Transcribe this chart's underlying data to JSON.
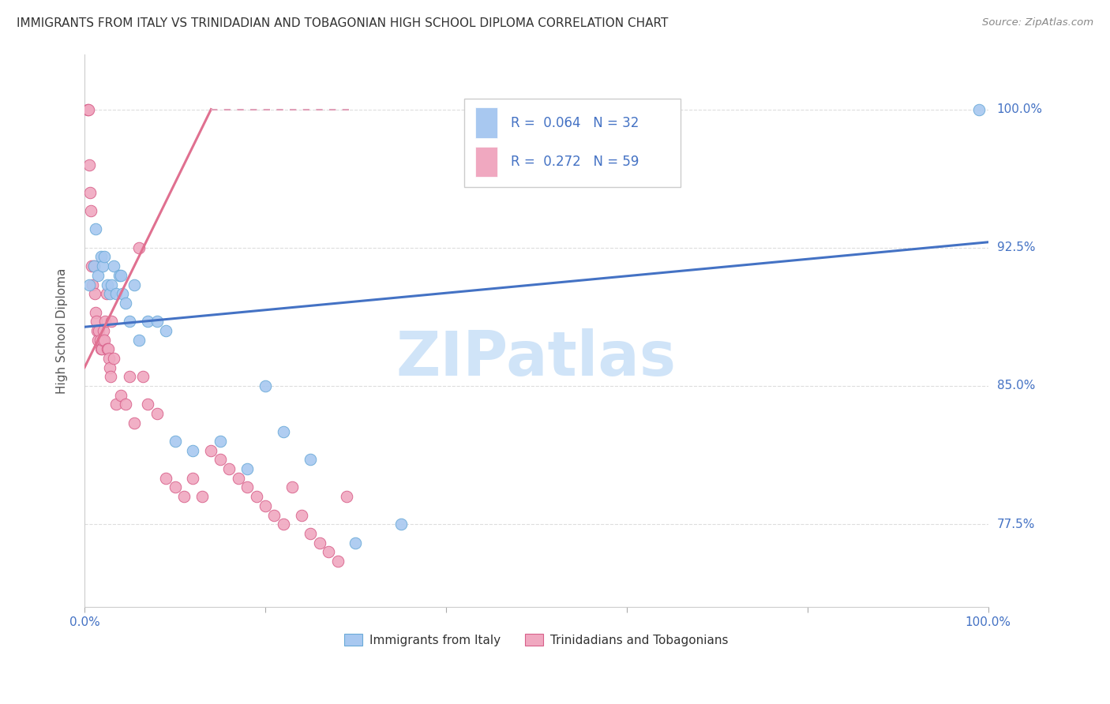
{
  "title": "IMMIGRANTS FROM ITALY VS TRINIDADIAN AND TOBAGONIAN HIGH SCHOOL DIPLOMA CORRELATION CHART",
  "source": "Source: ZipAtlas.com",
  "ylabel": "High School Diploma",
  "legend_italy_R": "0.064",
  "legend_italy_N": "32",
  "legend_trint_R": "0.272",
  "legend_trint_N": "59",
  "legend_label_italy": "Immigrants from Italy",
  "legend_label_trint": "Trinidadians and Tobagonians",
  "italy_color": "#a8c8f0",
  "italy_edge_color": "#6aaad8",
  "trint_color": "#f0a8c0",
  "trint_edge_color": "#d8608a",
  "italy_line_color": "#4472c4",
  "trint_line_color": "#e07090",
  "trint_dashed_color": "#e0a0b8",
  "r_n_color": "#4472c4",
  "watermark_color": "#d0e4f8",
  "axis_label_color": "#4472c4",
  "title_color": "#333333",
  "source_color": "#888888",
  "xlim": [
    0,
    100
  ],
  "ylim": [
    73,
    103
  ],
  "yticks": [
    77.5,
    85.0,
    92.5,
    100.0
  ],
  "italy_x": [
    0.5,
    1.0,
    1.2,
    1.5,
    1.8,
    2.0,
    2.2,
    2.5,
    2.8,
    3.0,
    3.2,
    3.5,
    3.8,
    4.0,
    4.2,
    4.5,
    5.0,
    5.5,
    6.0,
    7.0,
    8.0,
    9.0,
    10.0,
    12.0,
    15.0,
    18.0,
    20.0,
    22.0,
    25.0,
    30.0,
    35.0,
    99.0
  ],
  "italy_y": [
    90.5,
    91.5,
    93.5,
    91.0,
    92.0,
    91.5,
    92.0,
    90.5,
    90.0,
    90.5,
    91.5,
    90.0,
    91.0,
    91.0,
    90.0,
    89.5,
    88.5,
    90.5,
    87.5,
    88.5,
    88.5,
    88.0,
    82.0,
    81.5,
    82.0,
    80.5,
    85.0,
    82.5,
    81.0,
    76.5,
    77.5,
    100.0
  ],
  "trint_x": [
    0.3,
    0.4,
    0.5,
    0.6,
    0.7,
    0.8,
    0.9,
    1.0,
    1.1,
    1.2,
    1.3,
    1.4,
    1.5,
    1.6,
    1.7,
    1.8,
    1.9,
    2.0,
    2.1,
    2.2,
    2.3,
    2.4,
    2.5,
    2.6,
    2.7,
    2.8,
    2.9,
    3.0,
    3.2,
    3.5,
    4.0,
    4.5,
    5.0,
    5.5,
    6.0,
    6.5,
    7.0,
    8.0,
    9.0,
    10.0,
    11.0,
    12.0,
    13.0,
    14.0,
    15.0,
    16.0,
    17.0,
    18.0,
    19.0,
    20.0,
    21.0,
    22.0,
    23.0,
    24.0,
    25.0,
    26.0,
    27.0,
    28.0,
    29.0
  ],
  "trint_y": [
    100.0,
    100.0,
    97.0,
    95.5,
    94.5,
    91.5,
    90.5,
    91.5,
    90.0,
    89.0,
    88.5,
    88.0,
    87.5,
    88.0,
    87.5,
    87.0,
    87.0,
    87.5,
    88.0,
    87.5,
    88.5,
    90.0,
    87.0,
    87.0,
    86.5,
    86.0,
    85.5,
    88.5,
    86.5,
    84.0,
    84.5,
    84.0,
    85.5,
    83.0,
    92.5,
    85.5,
    84.0,
    83.5,
    80.0,
    79.5,
    79.0,
    80.0,
    79.0,
    81.5,
    81.0,
    80.5,
    80.0,
    79.5,
    79.0,
    78.5,
    78.0,
    77.5,
    79.5,
    78.0,
    77.0,
    76.5,
    76.0,
    75.5,
    79.0
  ]
}
